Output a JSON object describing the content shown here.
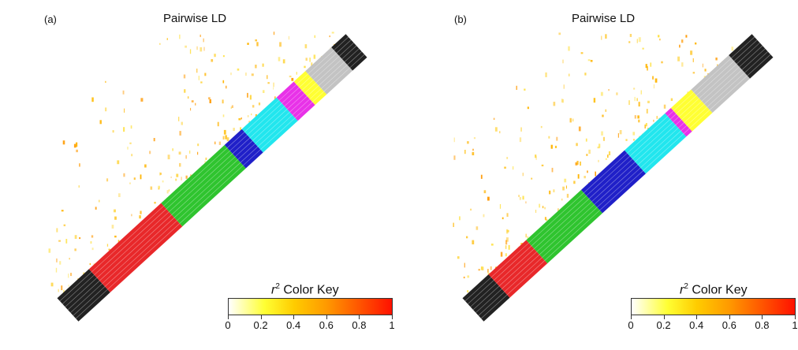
{
  "chart_data": [
    {
      "type": "heatmap",
      "panel_label": "(a)",
      "title": "Pairwise LD",
      "matrix": "triangular pairwise r^2 between markers along the diagonal",
      "diagonal_blocks": [
        {
          "order": 1,
          "color": "#222222"
        },
        {
          "order": 2,
          "color": "#e8282a"
        },
        {
          "order": 3,
          "color": "#2fc42f"
        },
        {
          "order": 4,
          "color": "#2020c8"
        },
        {
          "order": 5,
          "color": "#22e6ee"
        },
        {
          "order": 6,
          "color": "#e832e8"
        },
        {
          "order": 7,
          "color": "#ffff33"
        },
        {
          "order": 8,
          "color": "#c3c3c3"
        },
        {
          "order": 9,
          "color": "#222222"
        }
      ],
      "color_key": {
        "title_var": "r",
        "title_exp": "2",
        "title_text": "Color Key",
        "range": [
          0,
          1
        ],
        "ticks": [
          "0",
          "0.2",
          "0.4",
          "0.6",
          "0.8",
          "1"
        ]
      }
    },
    {
      "type": "heatmap",
      "panel_label": "(b)",
      "title": "Pairwise LD",
      "matrix": "triangular pairwise r^2 between markers along the diagonal",
      "diagonal_blocks": [
        {
          "order": 1,
          "color": "#222222"
        },
        {
          "order": 2,
          "color": "#e8282a"
        },
        {
          "order": 3,
          "color": "#2fc42f"
        },
        {
          "order": 4,
          "color": "#2020c8"
        },
        {
          "order": 5,
          "color": "#22e6ee"
        },
        {
          "order": 6,
          "color": "#e832e8"
        },
        {
          "order": 7,
          "color": "#ffff33"
        },
        {
          "order": 8,
          "color": "#c3c3c3"
        },
        {
          "order": 9,
          "color": "#222222"
        }
      ],
      "color_key": {
        "title_var": "r",
        "title_exp": "2",
        "title_text": "Color Key",
        "range": [
          0,
          1
        ],
        "ticks": [
          "0",
          "0.2",
          "0.4",
          "0.6",
          "0.8",
          "1"
        ]
      }
    }
  ]
}
